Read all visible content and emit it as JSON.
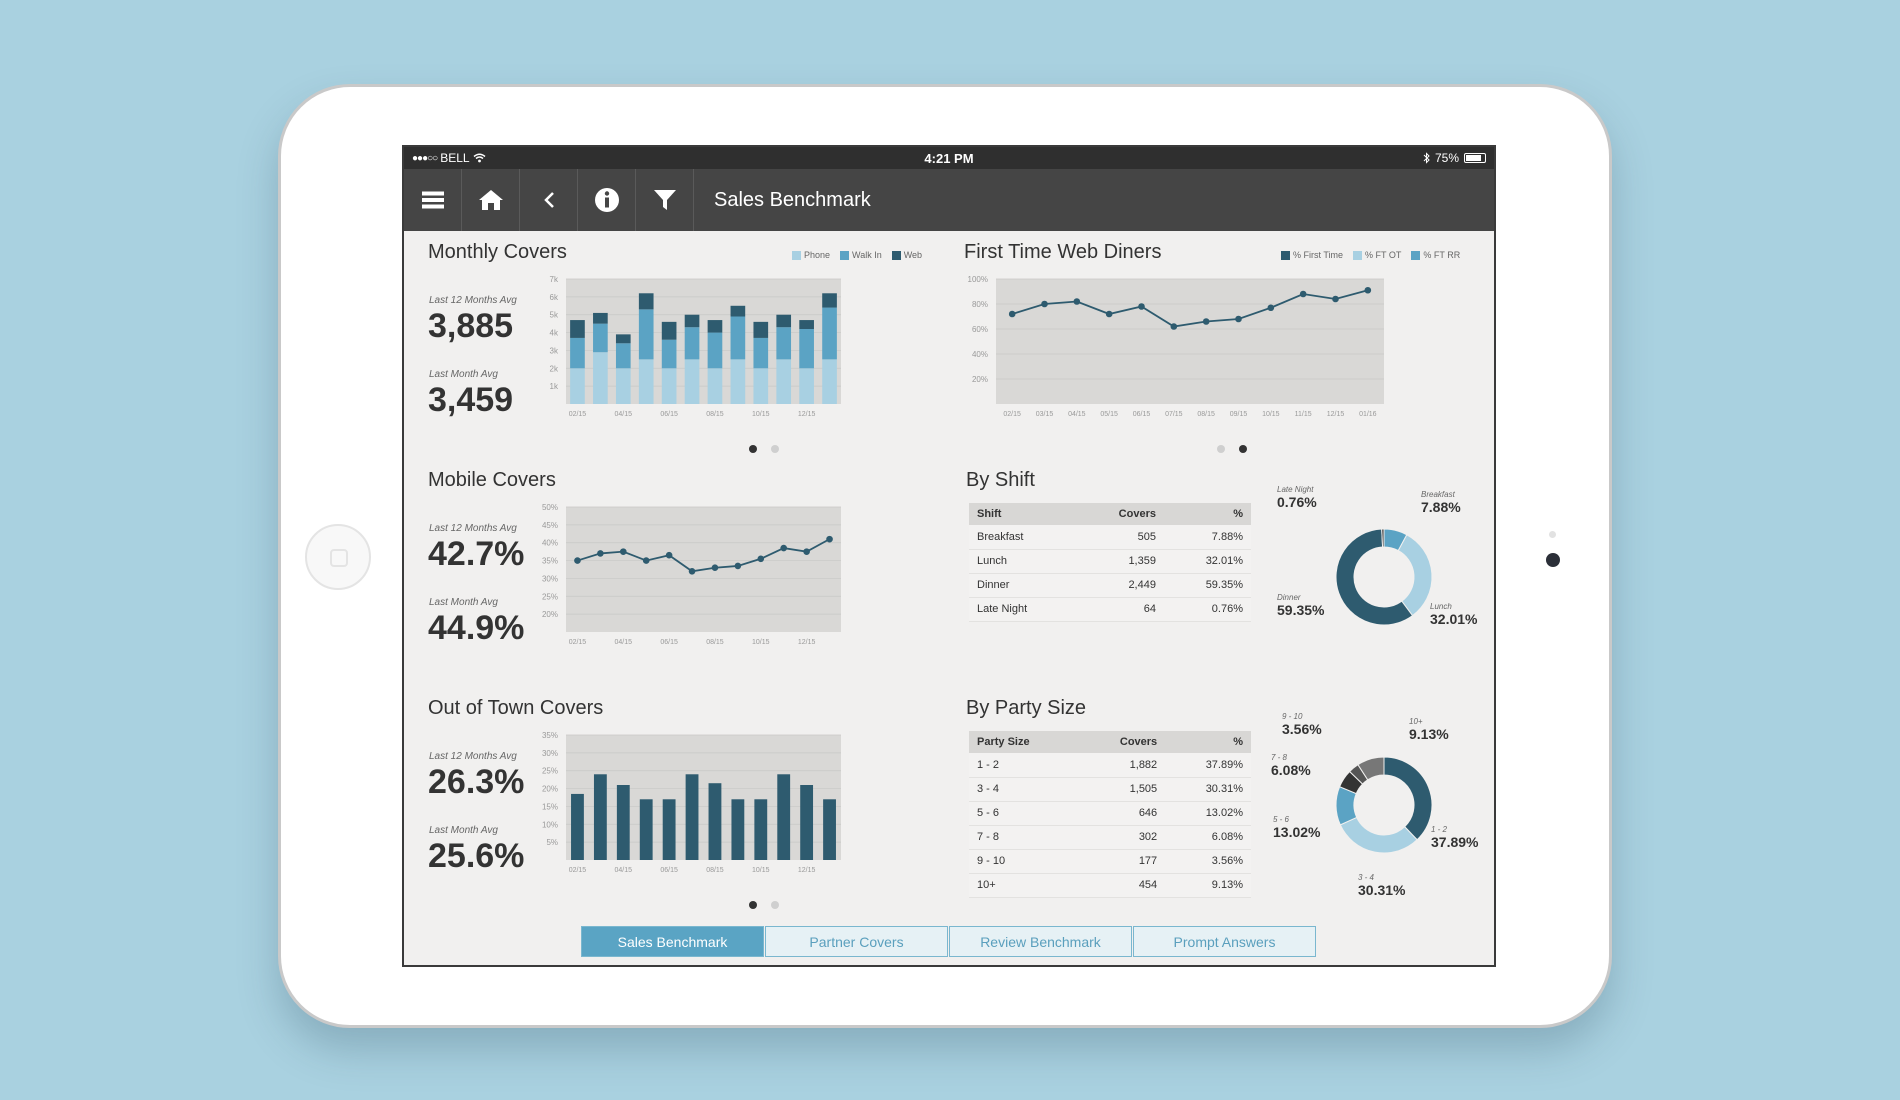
{
  "status": {
    "carrier": "BELL",
    "signal": "●●●○○",
    "time": "4:21 PM",
    "battery": "75%"
  },
  "toolbar": {
    "title": "Sales Benchmark",
    "icons": [
      "menu-icon",
      "home-icon",
      "back-icon",
      "info-icon",
      "filter-icon"
    ]
  },
  "monthly": {
    "title": "Monthly Covers",
    "stat1_label": "Last 12 Months Avg",
    "stat1_value": "3,885",
    "stat2_label": "Last Month Avg",
    "stat2_value": "3,459",
    "legend": [
      "Phone",
      "Walk In",
      "Web"
    ]
  },
  "mobile": {
    "title": "Mobile Covers",
    "stat1_label": "Last 12 Months Avg",
    "stat1_value": "42.7%",
    "stat2_label": "Last Month Avg",
    "stat2_value": "44.9%"
  },
  "outoftown": {
    "title": "Out of Town Covers",
    "stat1_label": "Last 12 Months Avg",
    "stat1_value": "26.3%",
    "stat2_label": "Last Month Avg",
    "stat2_value": "25.6%"
  },
  "webdiners": {
    "title": "First Time Web Diners",
    "legend": [
      "% First Time",
      "% FT OT",
      "% FT RR"
    ]
  },
  "shift": {
    "title": "By Shift",
    "headers": [
      "Shift",
      "Covers",
      "%"
    ],
    "rows": [
      [
        "Breakfast",
        "505",
        "7.88%"
      ],
      [
        "Lunch",
        "1,359",
        "32.01%"
      ],
      [
        "Dinner",
        "2,449",
        "59.35%"
      ],
      [
        "Late Night",
        "64",
        "0.76%"
      ]
    ],
    "labels": {
      "late_name": "Late Night",
      "late_val": "0.76%",
      "breakfast_name": "Breakfast",
      "breakfast_val": "7.88%",
      "dinner_name": "Dinner",
      "dinner_val": "59.35%",
      "lunch_name": "Lunch",
      "lunch_val": "32.01%"
    }
  },
  "party": {
    "title": "By Party Size",
    "headers": [
      "Party Size",
      "Covers",
      "%"
    ],
    "rows": [
      [
        "1 - 2",
        "1,882",
        "37.89%"
      ],
      [
        "3 - 4",
        "1,505",
        "30.31%"
      ],
      [
        "5 - 6",
        "646",
        "13.02%"
      ],
      [
        "7 - 8",
        "302",
        "6.08%"
      ],
      [
        "9 - 10",
        "177",
        "3.56%"
      ],
      [
        "10+",
        "454",
        "9.13%"
      ]
    ],
    "labels": {
      "p910_name": "9 - 10",
      "p910_val": "3.56%",
      "p10_name": "10+",
      "p10_val": "9.13%",
      "p78_name": "7 - 8",
      "p78_val": "6.08%",
      "p56_name": "5 - 6",
      "p56_val": "13.02%",
      "p12_name": "1 - 2",
      "p12_val": "37.89%",
      "p34_name": "3 - 4",
      "p34_val": "30.31%"
    }
  },
  "tabs": [
    "Sales Benchmark",
    "Partner Covers",
    "Review Benchmark",
    "Prompt Answers"
  ],
  "colors": {
    "dark": "#2e5b6f",
    "mid": "#5ba3c4",
    "light": "#a8d0e2",
    "grey": "#5b5b5b",
    "plot_bg": "#d9d8d6"
  },
  "chart_data": [
    {
      "type": "bar",
      "name": "Monthly Covers",
      "stacked": true,
      "categories": [
        "02/15",
        "03/15",
        "04/15",
        "05/15",
        "06/15",
        "07/15",
        "08/15",
        "09/15",
        "10/15",
        "11/15",
        "12/15",
        "01/16"
      ],
      "tick_labels": [
        "02/15",
        "04/15",
        "06/15",
        "08/15",
        "10/15",
        "12/15"
      ],
      "yticks": [
        "1k",
        "2k",
        "3k",
        "4k",
        "5k",
        "6k",
        "7k"
      ],
      "ylim": [
        0,
        7000
      ],
      "series": [
        {
          "name": "Phone",
          "values": [
            2000,
            2900,
            2000,
            2500,
            2000,
            2500,
            2000,
            2500,
            2000,
            2500,
            2000,
            2500
          ],
          "color": "#a8d0e2"
        },
        {
          "name": "Walk In",
          "values": [
            1700,
            1600,
            1400,
            2800,
            1600,
            1800,
            2000,
            2400,
            1700,
            1800,
            2200,
            2900
          ],
          "color": "#5ba3c4"
        },
        {
          "name": "Web",
          "values": [
            1000,
            600,
            500,
            900,
            1000,
            700,
            700,
            600,
            900,
            700,
            500,
            800
          ],
          "color": "#2e5b6f"
        }
      ]
    },
    {
      "type": "line",
      "name": "First Time Web Diners",
      "categories": [
        "02/15",
        "03/15",
        "04/15",
        "05/15",
        "06/15",
        "07/15",
        "08/15",
        "09/15",
        "10/15",
        "11/15",
        "12/15",
        "01/16"
      ],
      "yticks": [
        "20%",
        "40%",
        "60%",
        "80%",
        "100%"
      ],
      "ylim": [
        0,
        100
      ],
      "values": [
        72,
        80,
        82,
        72,
        78,
        62,
        66,
        68,
        77,
        88,
        84,
        91
      ]
    },
    {
      "type": "line",
      "name": "Mobile Covers",
      "categories": [
        "02/15",
        "03/15",
        "04/15",
        "05/15",
        "06/15",
        "07/15",
        "08/15",
        "09/15",
        "10/15",
        "11/15",
        "12/15",
        "01/16"
      ],
      "tick_labels": [
        "02/15",
        "04/15",
        "06/15",
        "08/15",
        "10/15",
        "12/15"
      ],
      "yticks": [
        "20%",
        "25%",
        "30%",
        "35%",
        "40%",
        "45%",
        "50%"
      ],
      "ylim": [
        15,
        50
      ],
      "values": [
        35,
        37,
        37.5,
        35,
        36.5,
        32,
        33,
        33.5,
        35.5,
        38.5,
        37.5,
        41
      ]
    },
    {
      "type": "bar",
      "name": "Out of Town Covers",
      "categories": [
        "02/15",
        "03/15",
        "04/15",
        "05/15",
        "06/15",
        "07/15",
        "08/15",
        "09/15",
        "10/15",
        "11/15",
        "12/15",
        "01/16"
      ],
      "tick_labels": [
        "02/15",
        "04/15",
        "06/15",
        "08/15",
        "10/15",
        "12/15"
      ],
      "yticks": [
        "5%",
        "10%",
        "15%",
        "20%",
        "25%",
        "30%",
        "35%"
      ],
      "ylim": [
        0,
        35
      ],
      "values": [
        18.5,
        24,
        21,
        17,
        17,
        24,
        21.5,
        17,
        17,
        24,
        21,
        17
      ]
    },
    {
      "type": "pie",
      "name": "By Shift",
      "donut": true,
      "labels": [
        "Breakfast",
        "Lunch",
        "Dinner",
        "Late Night"
      ],
      "values": [
        7.88,
        32.01,
        59.35,
        0.76
      ],
      "colors": [
        "#5ba3c4",
        "#a8d0e2",
        "#2e5b6f",
        "#333333"
      ]
    },
    {
      "type": "pie",
      "name": "By Party Size",
      "donut": true,
      "labels": [
        "1 - 2",
        "3 - 4",
        "5 - 6",
        "7 - 8",
        "9 - 10",
        "10+"
      ],
      "values": [
        37.89,
        30.31,
        13.02,
        6.08,
        3.56,
        9.13
      ],
      "colors": [
        "#2e5b6f",
        "#a8d0e2",
        "#5ba3c4",
        "#333333",
        "#555555",
        "#777777"
      ]
    }
  ]
}
